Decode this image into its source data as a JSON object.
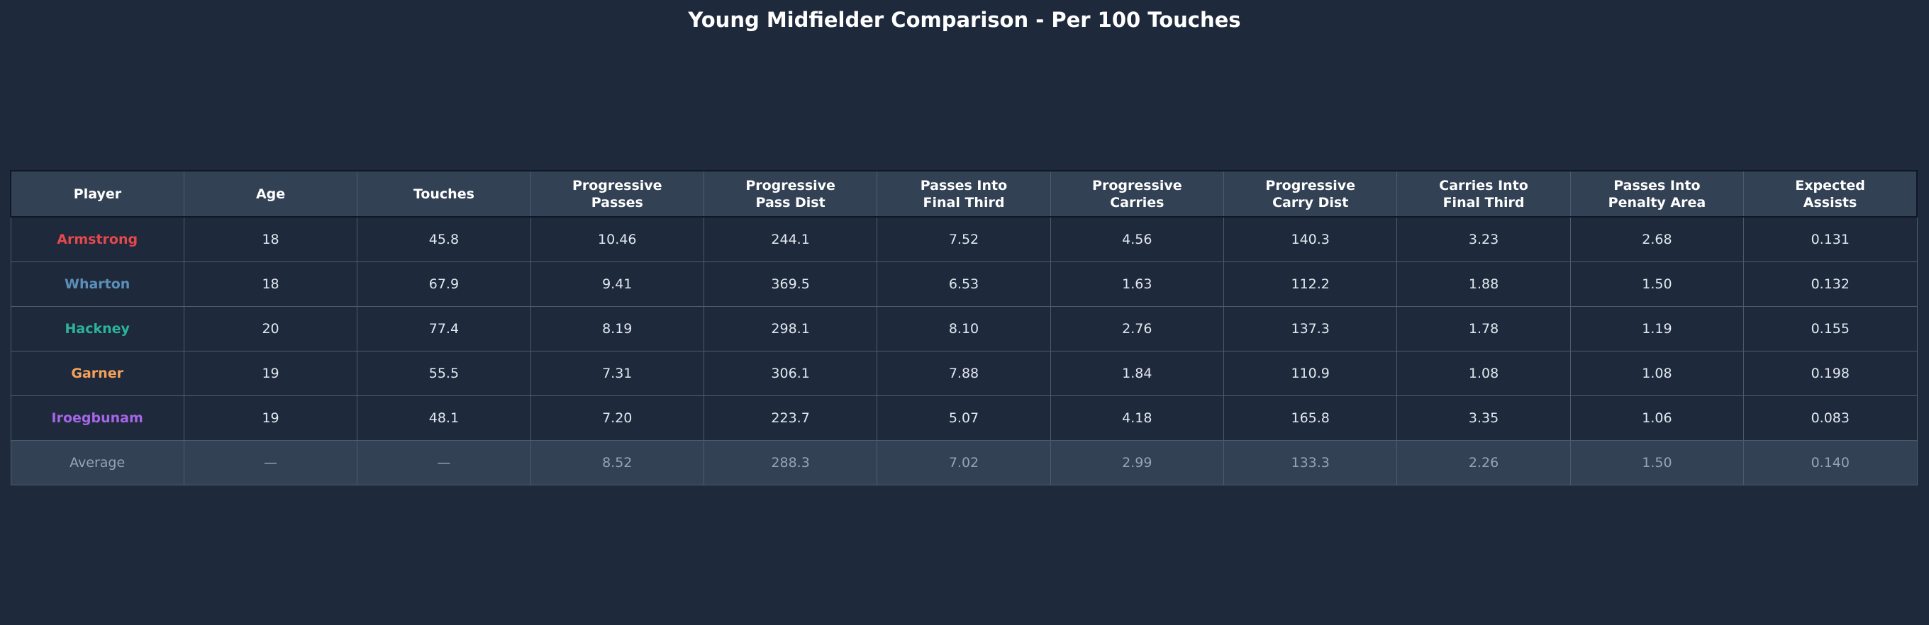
{
  "title": "Young Midfielder Comparison - Per 100 Touches",
  "colors": {
    "background": "#1e293b",
    "header_bg": "#334155",
    "average_bg": "#334155",
    "cell_text": "#e2e8f0",
    "average_text": "#94a3b8"
  },
  "chart_data": {
    "type": "table",
    "title": "Young Midfielder Comparison - Per 100 Touches",
    "columns": [
      [
        "Player"
      ],
      [
        "Age"
      ],
      [
        "Touches"
      ],
      [
        "Progressive",
        "Passes"
      ],
      [
        "Progressive",
        "Pass Dist"
      ],
      [
        "Passes Into",
        "Final Third"
      ],
      [
        "Progressive",
        "Carries"
      ],
      [
        "Progressive",
        "Carry Dist"
      ],
      [
        "Carries Into",
        "Final Third"
      ],
      [
        "Passes Into",
        "Penalty Area"
      ],
      [
        "Expected",
        "Assists"
      ]
    ],
    "rows": [
      {
        "player": "Armstrong",
        "color": "#e5484d",
        "values": [
          "18",
          "45.8",
          "10.46",
          "244.1",
          "7.52",
          "4.56",
          "140.3",
          "3.23",
          "2.68",
          "0.131"
        ]
      },
      {
        "player": "Wharton",
        "color": "#5b8fb9",
        "values": [
          "18",
          "67.9",
          "9.41",
          "369.5",
          "6.53",
          "1.63",
          "112.2",
          "1.88",
          "1.50",
          "0.132"
        ]
      },
      {
        "player": "Hackney",
        "color": "#2bb3a0",
        "values": [
          "20",
          "77.4",
          "8.19",
          "298.1",
          "8.10",
          "2.76",
          "137.3",
          "1.78",
          "1.19",
          "0.155"
        ]
      },
      {
        "player": "Garner",
        "color": "#f4a259",
        "values": [
          "19",
          "55.5",
          "7.31",
          "306.1",
          "7.88",
          "1.84",
          "110.9",
          "1.08",
          "1.08",
          "0.198"
        ]
      },
      {
        "player": "Iroegbunam",
        "color": "#a566e8",
        "values": [
          "19",
          "48.1",
          "7.20",
          "223.7",
          "5.07",
          "4.18",
          "165.8",
          "3.35",
          "1.06",
          "0.083"
        ]
      }
    ],
    "average": {
      "label": "Average",
      "values": [
        "—",
        "—",
        "8.52",
        "288.3",
        "7.02",
        "2.99",
        "133.3",
        "2.26",
        "1.50",
        "0.140"
      ]
    }
  }
}
